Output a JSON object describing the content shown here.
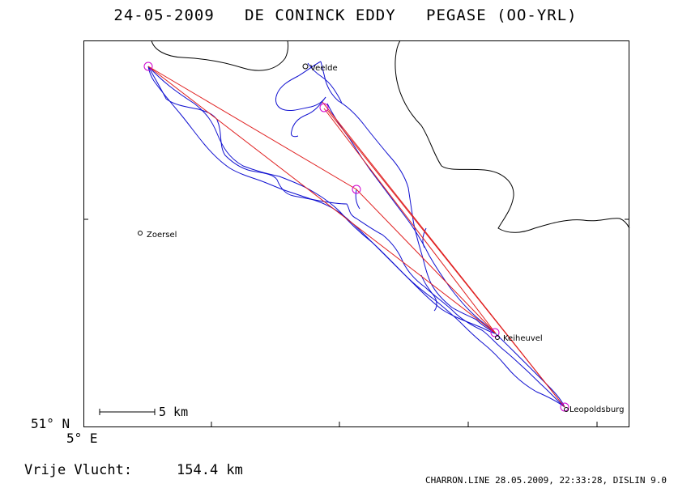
{
  "header": {
    "title": "24-05-2009   DE CONINCK EDDY   PEGASE (OO-YRL)"
  },
  "map": {
    "lat_label": "51° N",
    "lon_label": "5° E",
    "scale_label": "5 km",
    "places": [
      {
        "name": "Veelde"
      },
      {
        "name": "Zoersel"
      },
      {
        "name": "Keiheuvel"
      },
      {
        "name": "Leopoldsburg"
      }
    ],
    "colors": {
      "track": "#1010d0",
      "task": "#e02020",
      "turnpoint": "#d000d0",
      "border": "#000000"
    }
  },
  "summary": {
    "distance_label": "Vrije Vlucht:",
    "distance_value": "154.4 km"
  },
  "footer": {
    "credit": "CHARRON.LINE 28.05.2009, 22:33:28, DISLIN 9.0"
  }
}
